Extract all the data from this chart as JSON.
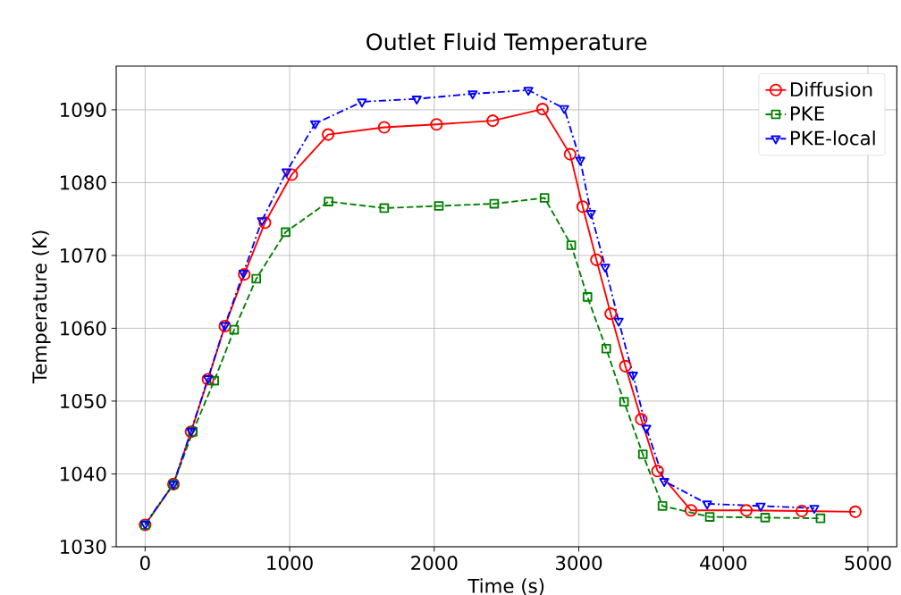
{
  "chart_data": {
    "type": "line",
    "title": "Outlet Fluid Temperature",
    "xlabel": "Time (s)",
    "ylabel": "Temperature (K)",
    "xlim": [
      -200,
      5200
    ],
    "ylim": [
      1030,
      1096
    ],
    "xticks": [
      0,
      1000,
      2000,
      3000,
      4000,
      5000
    ],
    "yticks": [
      1030,
      1040,
      1050,
      1060,
      1070,
      1080,
      1090
    ],
    "grid": true,
    "legend": "top right",
    "series": [
      {
        "name": "Diffusion",
        "color": "#ff0000",
        "marker": "circle",
        "line_style": "solid",
        "x": [
          0,
          196,
          318,
          435,
          552,
          686,
          829,
          1014,
          1266,
          1654,
          2016,
          2405,
          2749,
          2940,
          3027,
          3122,
          3221,
          3322,
          3432,
          3545,
          3776,
          4159,
          4543,
          4913
        ],
        "values": [
          1033.0,
          1038.6,
          1045.8,
          1053.0,
          1060.3,
          1067.4,
          1074.5,
          1081.1,
          1086.6,
          1087.6,
          1088.0,
          1088.5,
          1090.1,
          1083.9,
          1076.7,
          1069.4,
          1062.0,
          1054.8,
          1047.5,
          1040.4,
          1035.0,
          1035.0,
          1034.9,
          1034.8
        ]
      },
      {
        "name": "PKE",
        "color": "#008000",
        "marker": "square",
        "line_style": "dashed",
        "x": [
          0,
          196,
          330,
          478,
          616,
          769,
          972,
          1269,
          1654,
          2032,
          2415,
          2763,
          2948,
          3060,
          3190,
          3313,
          3443,
          3579,
          3906,
          4289,
          4672
        ],
        "values": [
          1033.0,
          1038.6,
          1045.8,
          1052.8,
          1059.8,
          1066.8,
          1073.2,
          1077.4,
          1076.5,
          1076.8,
          1077.1,
          1077.9,
          1071.4,
          1064.3,
          1057.2,
          1049.9,
          1042.7,
          1035.6,
          1034.1,
          1034.0,
          1033.9
        ]
      },
      {
        "name": "PKE-local",
        "color": "#0000ff",
        "marker": "triangle",
        "line_style": "dashdot",
        "x": [
          0,
          196,
          318,
          435,
          552,
          680,
          808,
          978,
          1176,
          1500,
          1879,
          2266,
          2651,
          2899,
          3010,
          3084,
          3183,
          3276,
          3375,
          3467,
          3591,
          3888,
          4258,
          4629
        ],
        "values": [
          1033.1,
          1038.6,
          1045.9,
          1053.1,
          1060.4,
          1067.6,
          1074.8,
          1081.5,
          1088.1,
          1091.1,
          1091.5,
          1092.2,
          1092.7,
          1090.2,
          1083.1,
          1075.8,
          1068.4,
          1061.0,
          1053.6,
          1046.3,
          1039.0,
          1035.9,
          1035.6,
          1035.3
        ]
      }
    ]
  }
}
